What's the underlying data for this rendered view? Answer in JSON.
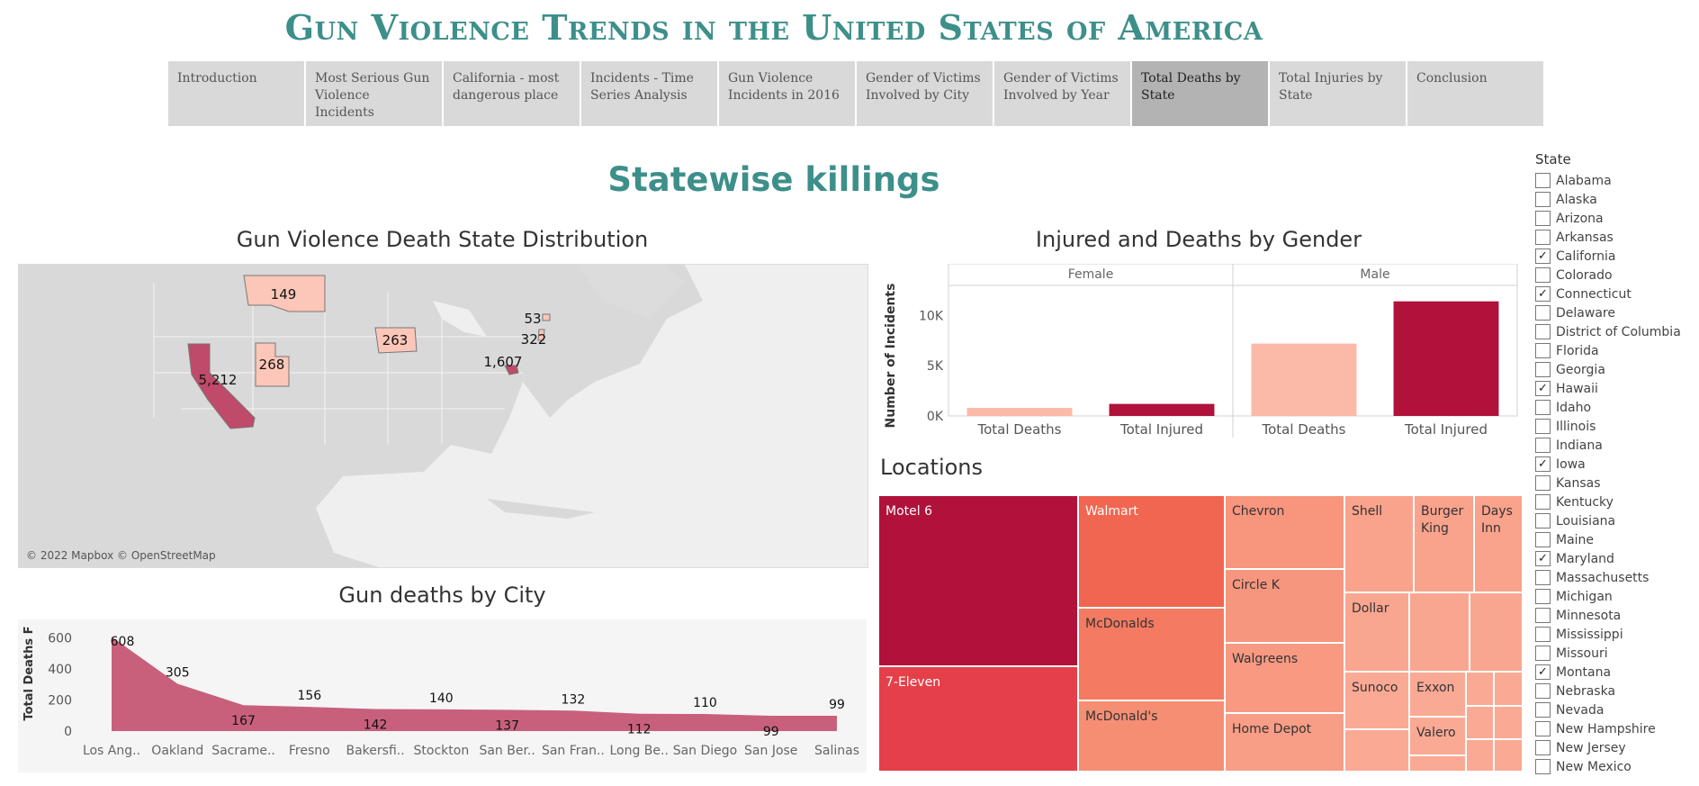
{
  "header": {
    "title": "Gun Violence Trends in the United States of America"
  },
  "nav": {
    "tabs": [
      {
        "label": "Introduction",
        "active": false
      },
      {
        "label": "Most Serious Gun Violence Incidents",
        "active": false
      },
      {
        "label": "California - most dangerous place",
        "active": false
      },
      {
        "label": "Incidents - Time Series Analysis",
        "active": false
      },
      {
        "label": "Gun Violence Incidents in 2016",
        "active": false
      },
      {
        "label": "Gender of Victims Involved by City",
        "active": false
      },
      {
        "label": "Gender of Victims Involved by Year",
        "active": false
      },
      {
        "label": "Total Deaths by State",
        "active": true
      },
      {
        "label": "Total Injuries by State",
        "active": false
      },
      {
        "label": "Conclusion",
        "active": false
      }
    ]
  },
  "section_title": "Statewise killings",
  "map": {
    "title": "Gun Violence Death State Distribution",
    "credit": "© 2022 Mapbox © OpenStreetMap",
    "labels": [
      {
        "state": "Montana",
        "value": "149"
      },
      {
        "state": "California",
        "value": "5,212"
      },
      {
        "state": "Utah",
        "value": "268"
      },
      {
        "state": "Iowa",
        "value": "263"
      },
      {
        "state": "Maryland",
        "value": "1,607"
      },
      {
        "state": "Connecticut",
        "value": "53"
      },
      {
        "state": "New Jersey",
        "value": "322"
      }
    ]
  },
  "gender_chart": {
    "title": "Injured and Deaths by Gender",
    "ylabel": "Number of Incidents",
    "panels": [
      "Female",
      "Male"
    ],
    "categories": [
      "Total Deaths",
      "Total Injured"
    ],
    "yticks": [
      "0K",
      "5K",
      "10K"
    ],
    "ylim": [
      0,
      12000
    ],
    "series": [
      {
        "panel": "Female",
        "values": [
          800,
          1200
        ]
      },
      {
        "panel": "Male",
        "values": [
          7200,
          11400
        ]
      }
    ],
    "colors": {
      "deaths": "#fbb9a8",
      "injured": "#b0123b"
    }
  },
  "locations": {
    "title": "Locations",
    "cells": [
      "Motel 6",
      "7-Eleven",
      "Walmart",
      "McDonalds",
      "McDonald's",
      "Chevron",
      "Circle K",
      "Walgreens",
      "Home Depot",
      "Shell",
      "Burger King",
      "Days Inn",
      "Dollar",
      "Sunoco",
      "Exxon",
      "Valero"
    ]
  },
  "chart_data": {
    "type": "area",
    "title": "Gun deaths by City",
    "ylabel": "Total Deaths F",
    "categories": [
      "Los Ang..",
      "Oakland",
      "Sacrame..",
      "Fresno",
      "Bakersfi..",
      "Stockton",
      "San Ber..",
      "San Fran..",
      "Long Be..",
      "San Diego",
      "San Jose",
      "Salinas"
    ],
    "values": [
      608,
      305,
      167,
      156,
      142,
      140,
      137,
      132,
      112,
      110,
      99,
      99
    ],
    "value_labels": [
      "608",
      "305",
      "167",
      "156",
      "142",
      "140",
      "137",
      "132",
      "112",
      "110",
      "99",
      "99"
    ],
    "yticks": [
      "0",
      "200",
      "400",
      "600"
    ],
    "ylim": [
      0,
      650
    ],
    "color": "#c8607c"
  },
  "filter": {
    "title": "State",
    "states": [
      {
        "name": "Alabama",
        "checked": false
      },
      {
        "name": "Alaska",
        "checked": false
      },
      {
        "name": "Arizona",
        "checked": false
      },
      {
        "name": "Arkansas",
        "checked": false
      },
      {
        "name": "California",
        "checked": true
      },
      {
        "name": "Colorado",
        "checked": false
      },
      {
        "name": "Connecticut",
        "checked": true
      },
      {
        "name": "Delaware",
        "checked": false
      },
      {
        "name": "District of Columbia",
        "checked": false
      },
      {
        "name": "Florida",
        "checked": false
      },
      {
        "name": "Georgia",
        "checked": false
      },
      {
        "name": "Hawaii",
        "checked": true
      },
      {
        "name": "Idaho",
        "checked": false
      },
      {
        "name": "Illinois",
        "checked": false
      },
      {
        "name": "Indiana",
        "checked": false
      },
      {
        "name": "Iowa",
        "checked": true
      },
      {
        "name": "Kansas",
        "checked": false
      },
      {
        "name": "Kentucky",
        "checked": false
      },
      {
        "name": "Louisiana",
        "checked": false
      },
      {
        "name": "Maine",
        "checked": false
      },
      {
        "name": "Maryland",
        "checked": true
      },
      {
        "name": "Massachusetts",
        "checked": false
      },
      {
        "name": "Michigan",
        "checked": false
      },
      {
        "name": "Minnesota",
        "checked": false
      },
      {
        "name": "Mississippi",
        "checked": false
      },
      {
        "name": "Missouri",
        "checked": false
      },
      {
        "name": "Montana",
        "checked": true
      },
      {
        "name": "Nebraska",
        "checked": false
      },
      {
        "name": "Nevada",
        "checked": false
      },
      {
        "name": "New Hampshire",
        "checked": false
      },
      {
        "name": "New Jersey",
        "checked": false
      },
      {
        "name": "New Mexico",
        "checked": false
      }
    ]
  }
}
